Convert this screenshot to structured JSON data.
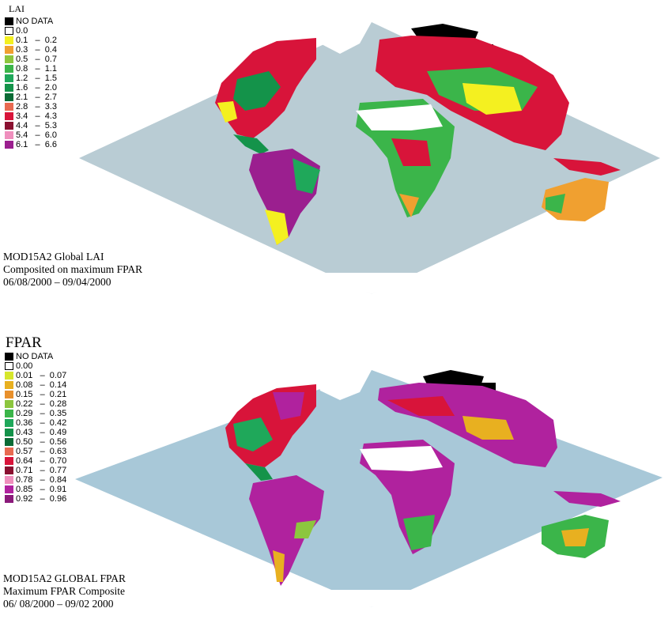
{
  "lai": {
    "legend_title": "LAI",
    "legend": [
      {
        "label": "NO DATA",
        "color": "#000000"
      },
      {
        "label": "0.0",
        "color": "#ffffff"
      },
      {
        "label": "0.1   –  0.2",
        "color": "#f4f020"
      },
      {
        "label": "0.3   –  0.4",
        "color": "#f0a030"
      },
      {
        "label": "0.5   –  0.7",
        "color": "#8cc63e"
      },
      {
        "label": "0.8   –  1.1",
        "color": "#3bb54a"
      },
      {
        "label": "1.2   –  1.5",
        "color": "#1fa85a"
      },
      {
        "label": "1.6   –  2.0",
        "color": "#14934a"
      },
      {
        "label": "2.1   –  2.7",
        "color": "#0b6b35"
      },
      {
        "label": "2.8   –  3.3",
        "color": "#e86a50"
      },
      {
        "label": "3.4   –  4.3",
        "color": "#d8143a"
      },
      {
        "label": "4.4   –  5.3",
        "color": "#8a1030"
      },
      {
        "label": "5.4   –  6.0",
        "color": "#ef8fbd"
      },
      {
        "label": "6.1   –  6.6",
        "color": "#9b1f8f"
      }
    ],
    "caption": [
      "MOD15A2 Global LAI",
      "Composited on maximum FPAR",
      "06/08/2000  –  09/04/2000"
    ],
    "ocean_color": "#b9ccd4"
  },
  "fpar": {
    "legend_title": "FPAR",
    "legend": [
      {
        "label": "NO DATA",
        "color": "#000000"
      },
      {
        "label": "0.00",
        "color": "#ffffff"
      },
      {
        "label": "0.01   –  0.07",
        "color": "#d6e62c"
      },
      {
        "label": "0.08   –  0.14",
        "color": "#e8b020"
      },
      {
        "label": "0.15   –  0.21",
        "color": "#e8902c"
      },
      {
        "label": "0.22   –  0.28",
        "color": "#8cc63e"
      },
      {
        "label": "0.29   –  0.35",
        "color": "#3bb54a"
      },
      {
        "label": "0.36   –  0.42",
        "color": "#1fa85a"
      },
      {
        "label": "0.43   –  0.49",
        "color": "#14934a"
      },
      {
        "label": "0.50   –  0.56",
        "color": "#0b6b35"
      },
      {
        "label": "0.57   –  0.63",
        "color": "#e86a50"
      },
      {
        "label": "0.64   –  0.70",
        "color": "#d8143a"
      },
      {
        "label": "0.71   –  0.77",
        "color": "#8a1030"
      },
      {
        "label": "0.78   –  0.84",
        "color": "#ef8fbd"
      },
      {
        "label": "0.85   –  0.91",
        "color": "#b0229e"
      },
      {
        "label": "0.92   –  0.96",
        "color": "#8a1a7a"
      }
    ],
    "caption": [
      "MOD15A2 GLOBAL FPAR",
      "Maximum FPAR Composite",
      "06/ 08/2000  –  09/02 2000"
    ],
    "ocean_color": "#a8c8d8"
  }
}
